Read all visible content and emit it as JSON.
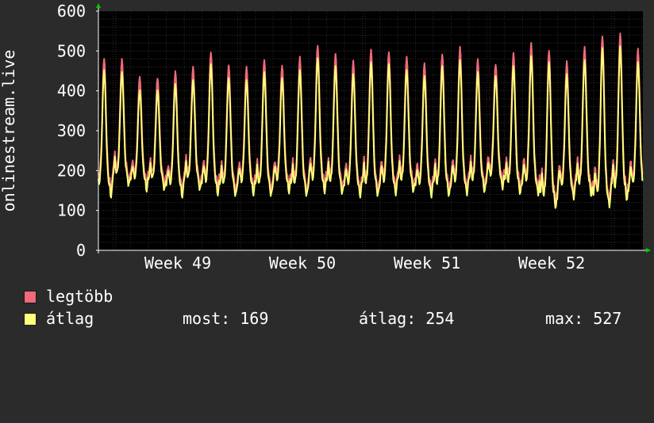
{
  "chart_data": {
    "type": "line",
    "ylabel": "onlinestream.live",
    "ylim": [
      0,
      600
    ],
    "yticks": [
      0,
      100,
      200,
      300,
      400,
      500,
      600
    ],
    "x_tick_labels": [
      "Week 49",
      "Week 50",
      "Week 51",
      "Week 52"
    ],
    "grid": true,
    "day_peaks": [
      460,
      455,
      410,
      410,
      425,
      435,
      475,
      440,
      435,
      455,
      440,
      460,
      490,
      470,
      450,
      480,
      475,
      460,
      445,
      470,
      485,
      455,
      445,
      470,
      495,
      480,
      450,
      485,
      515,
      520,
      480,
      525,
      505
    ],
    "day_troughs": [
      160,
      185,
      175,
      175,
      160,
      175,
      165,
      160,
      165,
      160,
      170,
      160,
      170,
      165,
      160,
      160,
      165,
      170,
      160,
      160,
      165,
      170,
      180,
      165,
      165,
      130,
      155,
      160,
      135,
      150,
      160,
      150,
      160
    ],
    "series": [
      {
        "name": "legtöbb",
        "color": "#f06a7a"
      },
      {
        "name": "átlag",
        "color": "#ffff7a"
      }
    ]
  },
  "legend": {
    "items": [
      {
        "label": "legtöbb",
        "color": "#f06a7a"
      },
      {
        "label": "átlag",
        "color": "#ffff7a"
      }
    ],
    "stats": {
      "now": "most: 169",
      "avg": "átlag: 254",
      "max": "max: 527"
    }
  }
}
